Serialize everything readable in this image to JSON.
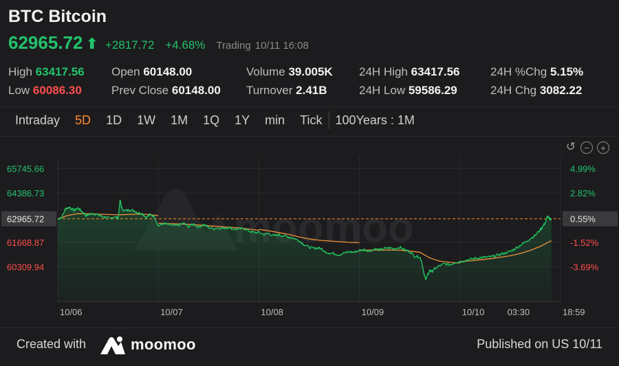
{
  "header": {
    "title": "BTC Bitcoin",
    "price": "62965.72",
    "change": "+2817.72",
    "change_pct": "+4.68%",
    "status": "Trading",
    "datetime": "10/11 16:08"
  },
  "stats": {
    "high_label": "High",
    "high": "63417.56",
    "low_label": "Low",
    "low": "60086.30",
    "open_label": "Open",
    "open": "60148.00",
    "prev_close_label": "Prev Close",
    "prev_close": "60148.00",
    "volume_label": "Volume",
    "volume": "39.005K",
    "turnover_label": "Turnover",
    "turnover": "2.41B",
    "h24_high_label": "24H High",
    "h24_high": "63417.56",
    "h24_low_label": "24H Low",
    "h24_low": "59586.29",
    "h24_pct_label": "24H %Chg",
    "h24_pct": "5.15%",
    "h24_chg_label": "24H Chg",
    "h24_chg": "3082.22"
  },
  "tabs": [
    "Intraday",
    "5D",
    "1D",
    "1W",
    "1M",
    "1Q",
    "1Y",
    "min",
    "Tick"
  ],
  "active_tab": "5D",
  "range_label": "100Years : 1M",
  "footer": {
    "created": "Created with",
    "brand": "moomoo",
    "published": "Published on US 10/11"
  },
  "colors": {
    "up": "#23c26b",
    "down": "#ff4d4d",
    "accent": "#ff8a2a",
    "price_line": "#21c35e",
    "avg_line": "#f0913a",
    "background": "#1c1c1e"
  },
  "icons": [
    "reset-icon",
    "zoom-out-icon",
    "zoom-in-icon",
    "moomoo-logo-icon"
  ],
  "chart_data": {
    "type": "line",
    "watermark": "moomoo",
    "prev_close_line": 62965.72,
    "y_left_ticks": [
      "65745.66",
      "64386.73",
      "62965.72",
      "61668.87",
      "60309.94"
    ],
    "y_right_ticks": [
      "4.99%",
      "2.82%",
      "0.55%",
      "-1.52%",
      "-3.69%"
    ],
    "x_ticks": [
      "10/06",
      "10/07",
      "10/08",
      "10/09",
      "10/10",
      "03:30",
      "18:59"
    ],
    "ylim": [
      58400,
      66400
    ],
    "series": [
      {
        "values": [
          [
            0.0,
            62960
          ],
          [
            0.04,
            63060
          ],
          [
            0.08,
            63540
          ],
          [
            0.12,
            63600
          ],
          [
            0.16,
            63420
          ],
          [
            0.2,
            63560
          ],
          [
            0.24,
            63380
          ],
          [
            0.28,
            63140
          ],
          [
            0.32,
            63220
          ],
          [
            0.36,
            63260
          ],
          [
            0.4,
            63180
          ],
          [
            0.44,
            63100
          ],
          [
            0.48,
            63050
          ],
          [
            0.52,
            62980
          ],
          [
            0.56,
            63090
          ],
          [
            0.6,
            63000
          ],
          [
            0.62,
            64000
          ],
          [
            0.64,
            63480
          ],
          [
            0.68,
            63410
          ],
          [
            0.72,
            63470
          ],
          [
            0.76,
            63400
          ],
          [
            0.8,
            63300
          ],
          [
            0.84,
            63250
          ],
          [
            0.88,
            63040
          ],
          [
            0.92,
            63200
          ],
          [
            0.96,
            63100
          ],
          [
            1.0,
            62560
          ],
          [
            1.05,
            62700
          ],
          [
            1.1,
            62640
          ],
          [
            1.15,
            62580
          ],
          [
            1.2,
            62600
          ],
          [
            1.25,
            62720
          ],
          [
            1.3,
            62540
          ],
          [
            1.35,
            62680
          ],
          [
            1.4,
            62500
          ],
          [
            1.45,
            62650
          ],
          [
            1.5,
            62480
          ],
          [
            1.55,
            62420
          ],
          [
            1.6,
            62460
          ],
          [
            1.65,
            62440
          ],
          [
            1.7,
            62500
          ],
          [
            1.75,
            62400
          ],
          [
            1.8,
            62380
          ],
          [
            1.85,
            62440
          ],
          [
            1.9,
            62300
          ],
          [
            1.95,
            62200
          ],
          [
            2.0,
            62220
          ],
          [
            2.05,
            62100
          ],
          [
            2.1,
            62150
          ],
          [
            2.15,
            62020
          ],
          [
            2.2,
            62080
          ],
          [
            2.25,
            62020
          ],
          [
            2.3,
            61960
          ],
          [
            2.35,
            61880
          ],
          [
            2.4,
            61760
          ],
          [
            2.45,
            61540
          ],
          [
            2.5,
            61400
          ],
          [
            2.55,
            61320
          ],
          [
            2.6,
            61380
          ],
          [
            2.65,
            61160
          ],
          [
            2.7,
            61080
          ],
          [
            2.75,
            61040
          ],
          [
            2.8,
            60980
          ],
          [
            2.85,
            61080
          ],
          [
            2.9,
            61140
          ],
          [
            2.95,
            61120
          ],
          [
            3.0,
            61220
          ],
          [
            3.05,
            61260
          ],
          [
            3.1,
            61180
          ],
          [
            3.15,
            61300
          ],
          [
            3.2,
            61250
          ],
          [
            3.25,
            61320
          ],
          [
            3.3,
            61360
          ],
          [
            3.35,
            61300
          ],
          [
            3.4,
            61400
          ],
          [
            3.45,
            61250
          ],
          [
            3.5,
            61150
          ],
          [
            3.55,
            60900
          ],
          [
            3.6,
            60860
          ],
          [
            3.62,
            60600
          ],
          [
            3.64,
            59920
          ],
          [
            3.66,
            59660
          ],
          [
            3.68,
            59860
          ],
          [
            3.7,
            60120
          ],
          [
            3.72,
            60050
          ],
          [
            3.75,
            60220
          ],
          [
            3.8,
            60380
          ],
          [
            3.85,
            60480
          ],
          [
            3.9,
            60420
          ],
          [
            3.95,
            60560
          ],
          [
            4.0,
            60600
          ],
          [
            4.05,
            60660
          ],
          [
            4.1,
            60720
          ],
          [
            4.15,
            60780
          ],
          [
            4.2,
            60820
          ],
          [
            4.25,
            60840
          ],
          [
            4.3,
            60860
          ],
          [
            4.35,
            60920
          ],
          [
            4.4,
            61000
          ],
          [
            4.45,
            61080
          ],
          [
            4.5,
            61160
          ],
          [
            4.55,
            61320
          ],
          [
            4.6,
            61500
          ],
          [
            4.65,
            61680
          ],
          [
            4.7,
            61880
          ],
          [
            4.75,
            62060
          ],
          [
            4.8,
            62380
          ],
          [
            4.82,
            62500
          ],
          [
            4.85,
            62780
          ],
          [
            4.87,
            63120
          ],
          [
            4.89,
            62940
          ],
          [
            4.91,
            62970
          ]
        ]
      },
      {
        "values": [
          [
            0.0,
            62960
          ],
          [
            0.1,
            63150
          ],
          [
            0.2,
            63250
          ],
          [
            0.3,
            63240
          ],
          [
            0.4,
            63220
          ],
          [
            0.5,
            63200
          ],
          [
            0.6,
            63180
          ],
          [
            0.7,
            63200
          ],
          [
            0.8,
            63220
          ],
          [
            0.9,
            63200
          ],
          [
            1.0,
            63140
          ],
          [
            1.0,
            62720
          ],
          [
            1.1,
            62700
          ],
          [
            1.2,
            62680
          ],
          [
            1.3,
            62660
          ],
          [
            1.4,
            62620
          ],
          [
            1.5,
            62580
          ],
          [
            1.6,
            62540
          ],
          [
            1.7,
            62500
          ],
          [
            1.8,
            62460
          ],
          [
            1.9,
            62400
          ],
          [
            2.0,
            62320
          ],
          [
            2.0,
            62380
          ],
          [
            2.1,
            62300
          ],
          [
            2.2,
            62200
          ],
          [
            2.3,
            62100
          ],
          [
            2.4,
            61960
          ],
          [
            2.5,
            61850
          ],
          [
            2.6,
            61780
          ],
          [
            2.7,
            61740
          ],
          [
            2.8,
            61700
          ],
          [
            2.9,
            61660
          ],
          [
            3.0,
            61640
          ],
          [
            3.0,
            61220
          ],
          [
            3.1,
            61240
          ],
          [
            3.2,
            61230
          ],
          [
            3.3,
            61240
          ],
          [
            3.4,
            61230
          ],
          [
            3.5,
            61180
          ],
          [
            3.6,
            61120
          ],
          [
            3.7,
            60800
          ],
          [
            3.8,
            60620
          ],
          [
            3.9,
            60560
          ],
          [
            4.0,
            60520
          ],
          [
            4.0,
            60600
          ],
          [
            4.1,
            60640
          ],
          [
            4.2,
            60700
          ],
          [
            4.3,
            60760
          ],
          [
            4.4,
            60840
          ],
          [
            4.5,
            60920
          ],
          [
            4.6,
            61050
          ],
          [
            4.7,
            61220
          ],
          [
            4.8,
            61450
          ],
          [
            4.91,
            61760
          ]
        ]
      }
    ]
  }
}
